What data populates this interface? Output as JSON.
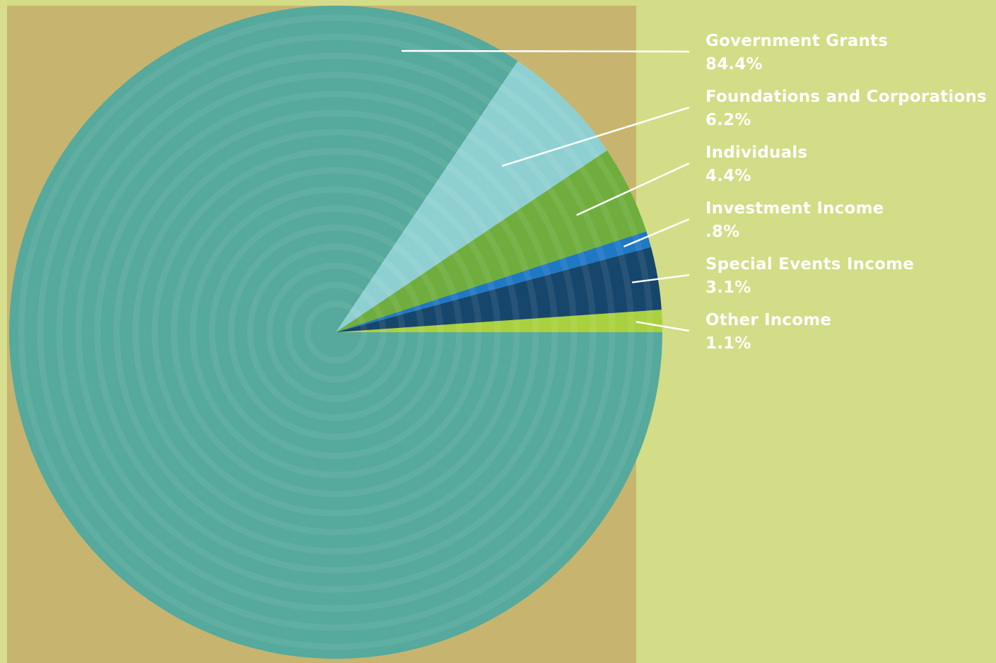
{
  "chart_data": {
    "type": "pie",
    "slices": [
      {
        "label": "Government Grants",
        "value": 84.4,
        "value_text": "84.4%",
        "color": "#55a99d"
      },
      {
        "label": "Foundations and Corporations",
        "value": 6.2,
        "value_text": "6.2%",
        "color": "#8ed0d2"
      },
      {
        "label": "Individuals",
        "value": 4.4,
        "value_text": "4.4%",
        "color": "#6fae3e"
      },
      {
        "label": "Investment Income",
        "value": 0.8,
        "value_text": ".8%",
        "color": "#1f78c4"
      },
      {
        "label": "Special Events Income",
        "value": 3.1,
        "value_text": "3.1%",
        "color": "#17466d"
      },
      {
        "label": "Other Income",
        "value": 1.1,
        "value_text": "1.1%",
        "color": "#a9d13e"
      }
    ],
    "legend_placement": "right"
  }
}
